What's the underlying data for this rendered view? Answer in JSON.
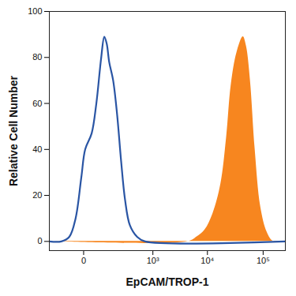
{
  "chart_data": {
    "type": "line",
    "x_label": "EpCAM/TROP-1",
    "y_label": "Relative Cell Number",
    "log": "x",
    "xlim": [
      -190,
      250000
    ],
    "xticks": [
      0,
      {
        "value": 1000,
        "label": "10³"
      },
      {
        "value": 10000,
        "label": "10⁴"
      },
      {
        "value": 100000,
        "label": "10⁵"
      }
    ],
    "ylim": [
      -4,
      100
    ],
    "yticks": [
      0,
      20,
      40,
      60,
      80,
      100
    ],
    "series": [
      {
        "type": "line",
        "color": "#2a55a4",
        "x": [
          -190,
          -92,
          -49,
          -24,
          -6,
          4,
          24,
          42,
          65,
          82,
          97,
          114,
          145,
          182,
          225,
          276,
          350,
          492,
          707,
          250000
        ],
        "values": [
          0,
          0,
          2,
          10,
          28,
          40,
          47,
          60,
          80,
          89,
          86,
          78,
          70,
          55,
          35,
          18,
          7,
          2,
          0,
          0
        ]
      },
      {
        "type": "area",
        "color": "#f7861f",
        "x": [
          -190,
          4570,
          6480,
          9000,
          12500,
          17400,
          22000,
          26700,
          33700,
          43800,
          50000,
          59000,
          71700,
          90300,
          117800,
          153000,
          250000
        ],
        "values": [
          0,
          0,
          2,
          5,
          12,
          25,
          45,
          68,
          82,
          89,
          85,
          70,
          40,
          15,
          4,
          0,
          0
        ]
      }
    ]
  }
}
